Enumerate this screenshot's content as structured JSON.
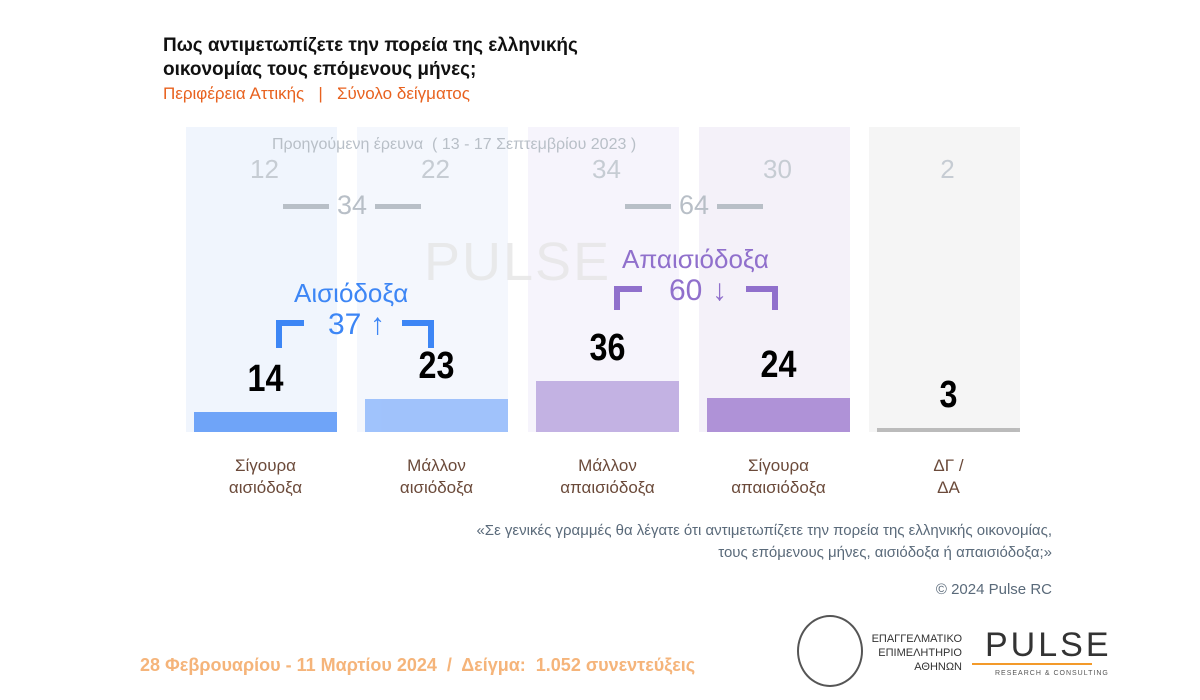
{
  "header": {
    "title": "Πως αντιμετωπίζετε την πορεία της ελληνικής οικονομίας τους επόμενους μήνες;",
    "subtitle": "Περιφέρεια Αττικής   |   Σύνολο δείγματος"
  },
  "chart_data": {
    "type": "bar",
    "categories": [
      "Σίγουρα αισιόδοξα",
      "Μάλλον αισιόδοξα",
      "Μάλλον απαισιόδοξα",
      "Σίγουρα απαισιόδοξα",
      "ΔΓ / ΔΑ"
    ],
    "values": [
      14,
      23,
      36,
      24,
      3
    ],
    "previous_label": "Προηγούμενη έρευνα  ( 13 - 17 Σεπτεμβρίου 2023 )",
    "previous_values": [
      12,
      22,
      34,
      30,
      2
    ],
    "previous_groups": {
      "optimistic": 34,
      "pessimistic": 64
    },
    "groups": [
      {
        "name": "Αισιόδοξα",
        "value": 37,
        "trend": "↑",
        "color": "#3d86f5"
      },
      {
        "name": "Απαισιόδοξα",
        "value": 60,
        "trend": "↓",
        "color": "#9070cc"
      }
    ],
    "colors": [
      "#4489f7",
      "#84b1fb",
      "#b29ddb",
      "#9873cc",
      "#a8a8a8"
    ],
    "bg_colors": [
      "#f0f5fd",
      "#f4f7fd",
      "#f6f4fc",
      "#f4f1f9",
      "#f5f5f5"
    ]
  },
  "watermark": "PULSE RESEARCH & CONSULTING",
  "quote": "«Σε γενικές γραμμές θα λέγατε ότι αντιμετωπίζετε την πορεία της ελληνικής οικονομίας,\nτους επόμενους μήνες, αισιόδοξα ή απαισιόδοξα;»",
  "copyright": "© 2024 Pulse RC",
  "footer": "28 Φεβρουαρίου - 11 Μαρτίου 2024  /  Δείγμα:  1.052 συνεντεύξεις",
  "logos": {
    "chamber": "ΕΠΑΓΓΕΛΜΑΤΙΚΟ ΕΠΙΜΕΛΗΤΗΡΙΟ ΑΘΗΝΩΝ",
    "pulse": "PULSE",
    "pulse_sub": "RESEARCH & CONSULTING"
  }
}
